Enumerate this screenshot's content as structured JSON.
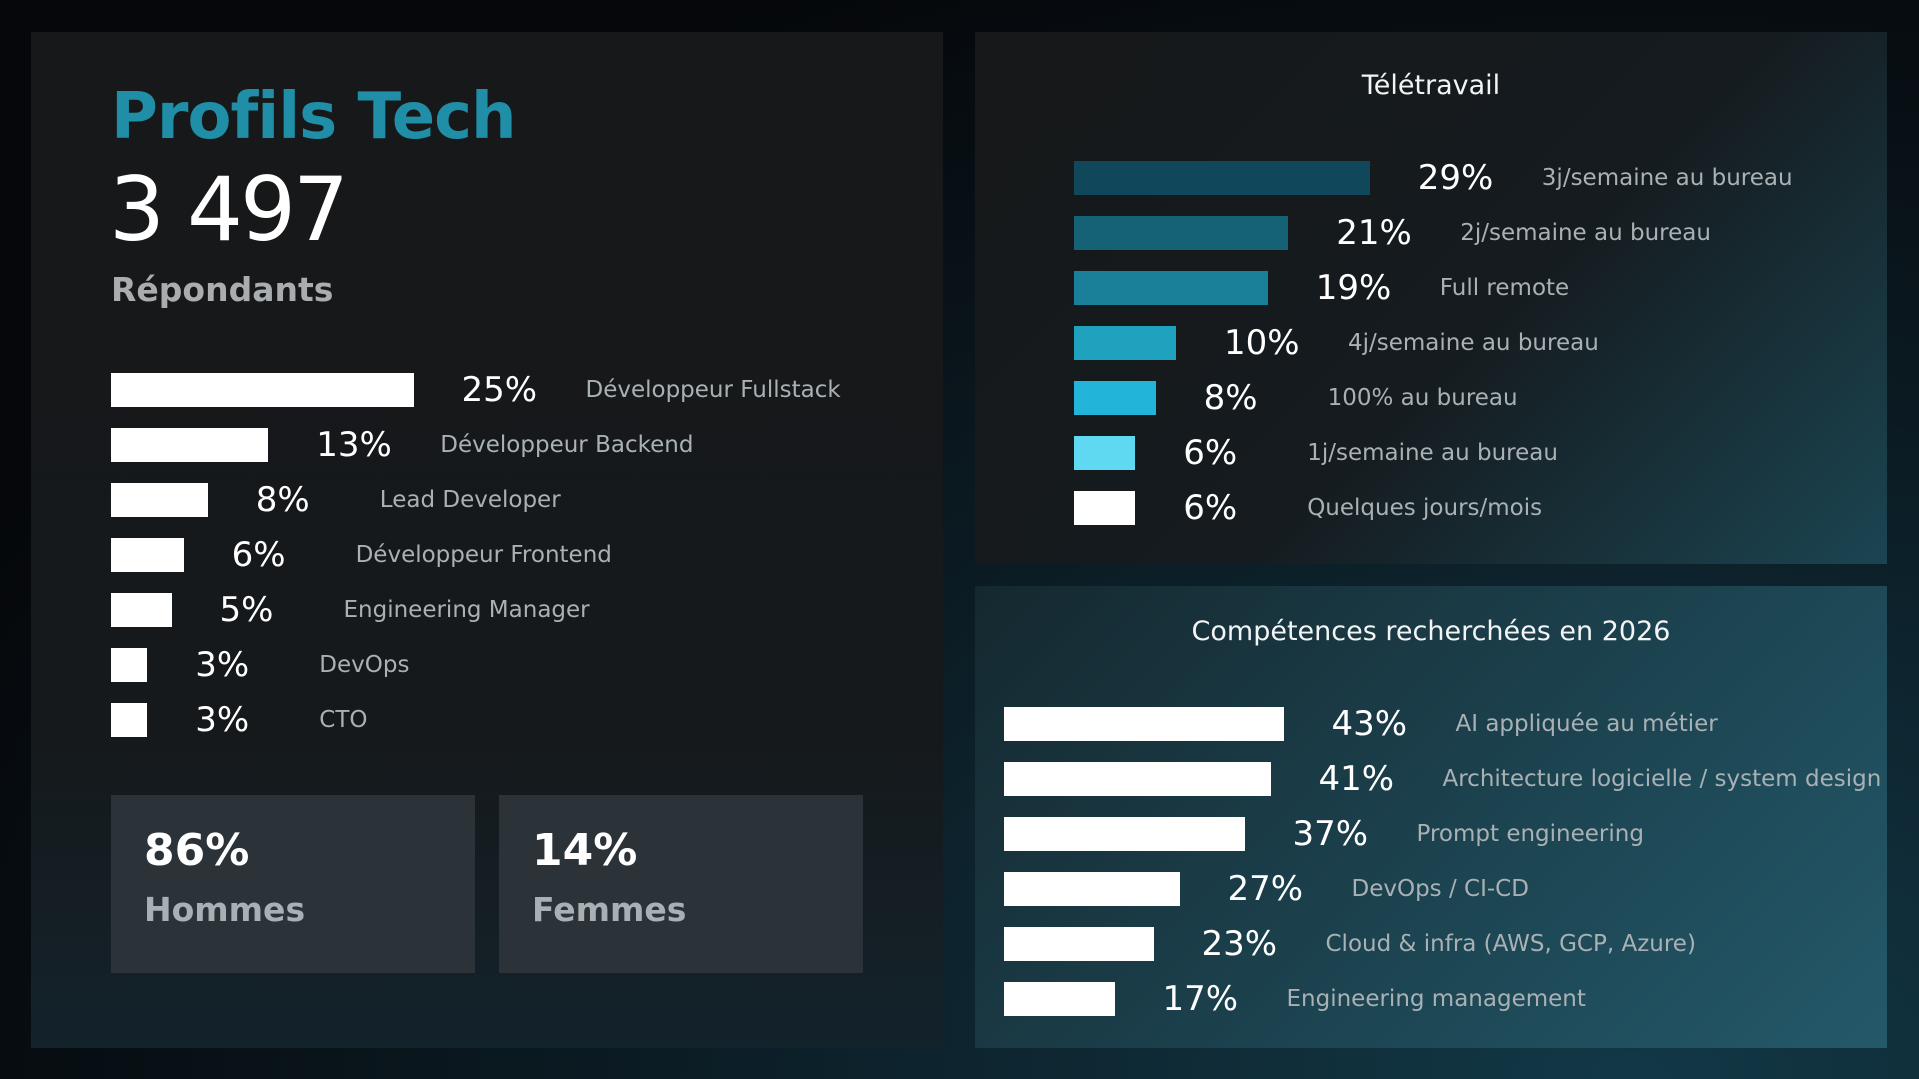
{
  "left_panel": {
    "title": "Profils Tech",
    "respondents_count": "3 497",
    "respondents_label": "Répondants",
    "title_color": "#1f8ea6"
  },
  "stats": [
    {
      "value": "86%",
      "label": "Hommes"
    },
    {
      "value": "14%",
      "label": "Femmes"
    }
  ],
  "chart_data": [
    {
      "type": "bar",
      "orientation": "horizontal",
      "title": "",
      "categories": [
        "Développeur Fullstack",
        "Développeur Backend",
        "Lead Developer",
        "Développeur Frontend",
        "Engineering Manager",
        "DevOps",
        "CTO"
      ],
      "values": [
        25,
        13,
        8,
        6,
        5,
        3,
        3
      ],
      "value_labels": [
        "25%",
        "13%",
        "8%",
        "6%",
        "5%",
        "3%",
        "3%"
      ],
      "unit": "%",
      "colors": [
        "#ffffff",
        "#ffffff",
        "#ffffff",
        "#ffffff",
        "#ffffff",
        "#ffffff",
        "#ffffff"
      ]
    },
    {
      "type": "bar",
      "orientation": "horizontal",
      "title": "Télétravail",
      "categories": [
        "3j/semaine au bureau",
        "2j/semaine au bureau",
        "Full remote",
        "4j/semaine au bureau",
        "100% au bureau",
        "1j/semaine au bureau",
        "Quelques jours/mois"
      ],
      "values": [
        29,
        21,
        19,
        10,
        8,
        6,
        6
      ],
      "value_labels": [
        "29%",
        "21%",
        "19%",
        "10%",
        "8%",
        "6%",
        "6%"
      ],
      "unit": "%",
      "colors": [
        "#10475a",
        "#156276",
        "#1a8099",
        "#1fa2bd",
        "#23b5d9",
        "#5fd8f1",
        "#ffffff"
      ]
    },
    {
      "type": "bar",
      "orientation": "horizontal",
      "title": "Compétences recherchées en 2026",
      "categories": [
        "AI appliquée au métier",
        "Architecture logicielle / system design",
        "Prompt engineering",
        "DevOps / CI-CD",
        "Cloud & infra (AWS, GCP, Azure)",
        "Engineering management"
      ],
      "values": [
        43,
        41,
        37,
        27,
        23,
        17
      ],
      "value_labels": [
        "43%",
        "41%",
        "37%",
        "27%",
        "23%",
        "17%"
      ],
      "unit": "%",
      "colors": [
        "#ffffff",
        "#ffffff",
        "#ffffff",
        "#ffffff",
        "#ffffff",
        "#ffffff"
      ]
    }
  ]
}
